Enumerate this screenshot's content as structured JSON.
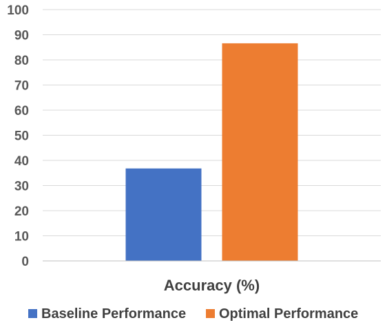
{
  "chart_data": {
    "type": "bar",
    "categories": [
      "Accuracy (%)"
    ],
    "series": [
      {
        "name": "Baseline Performance",
        "values": [
          36.8
        ],
        "color": "#4472C4"
      },
      {
        "name": "Optimal Performance",
        "values": [
          86.6
        ],
        "color": "#ED7D31"
      }
    ],
    "ylim": [
      0,
      100
    ],
    "yticks": [
      "0",
      "10",
      "20",
      "30",
      "40",
      "50",
      "60",
      "70",
      "80",
      "90",
      "100"
    ],
    "grid": true,
    "legend": "bottom",
    "colors": {
      "gridline": "#d9d9d9",
      "axis": "#bfbfbf",
      "text": "#404040",
      "tick_text": "#595959"
    }
  }
}
